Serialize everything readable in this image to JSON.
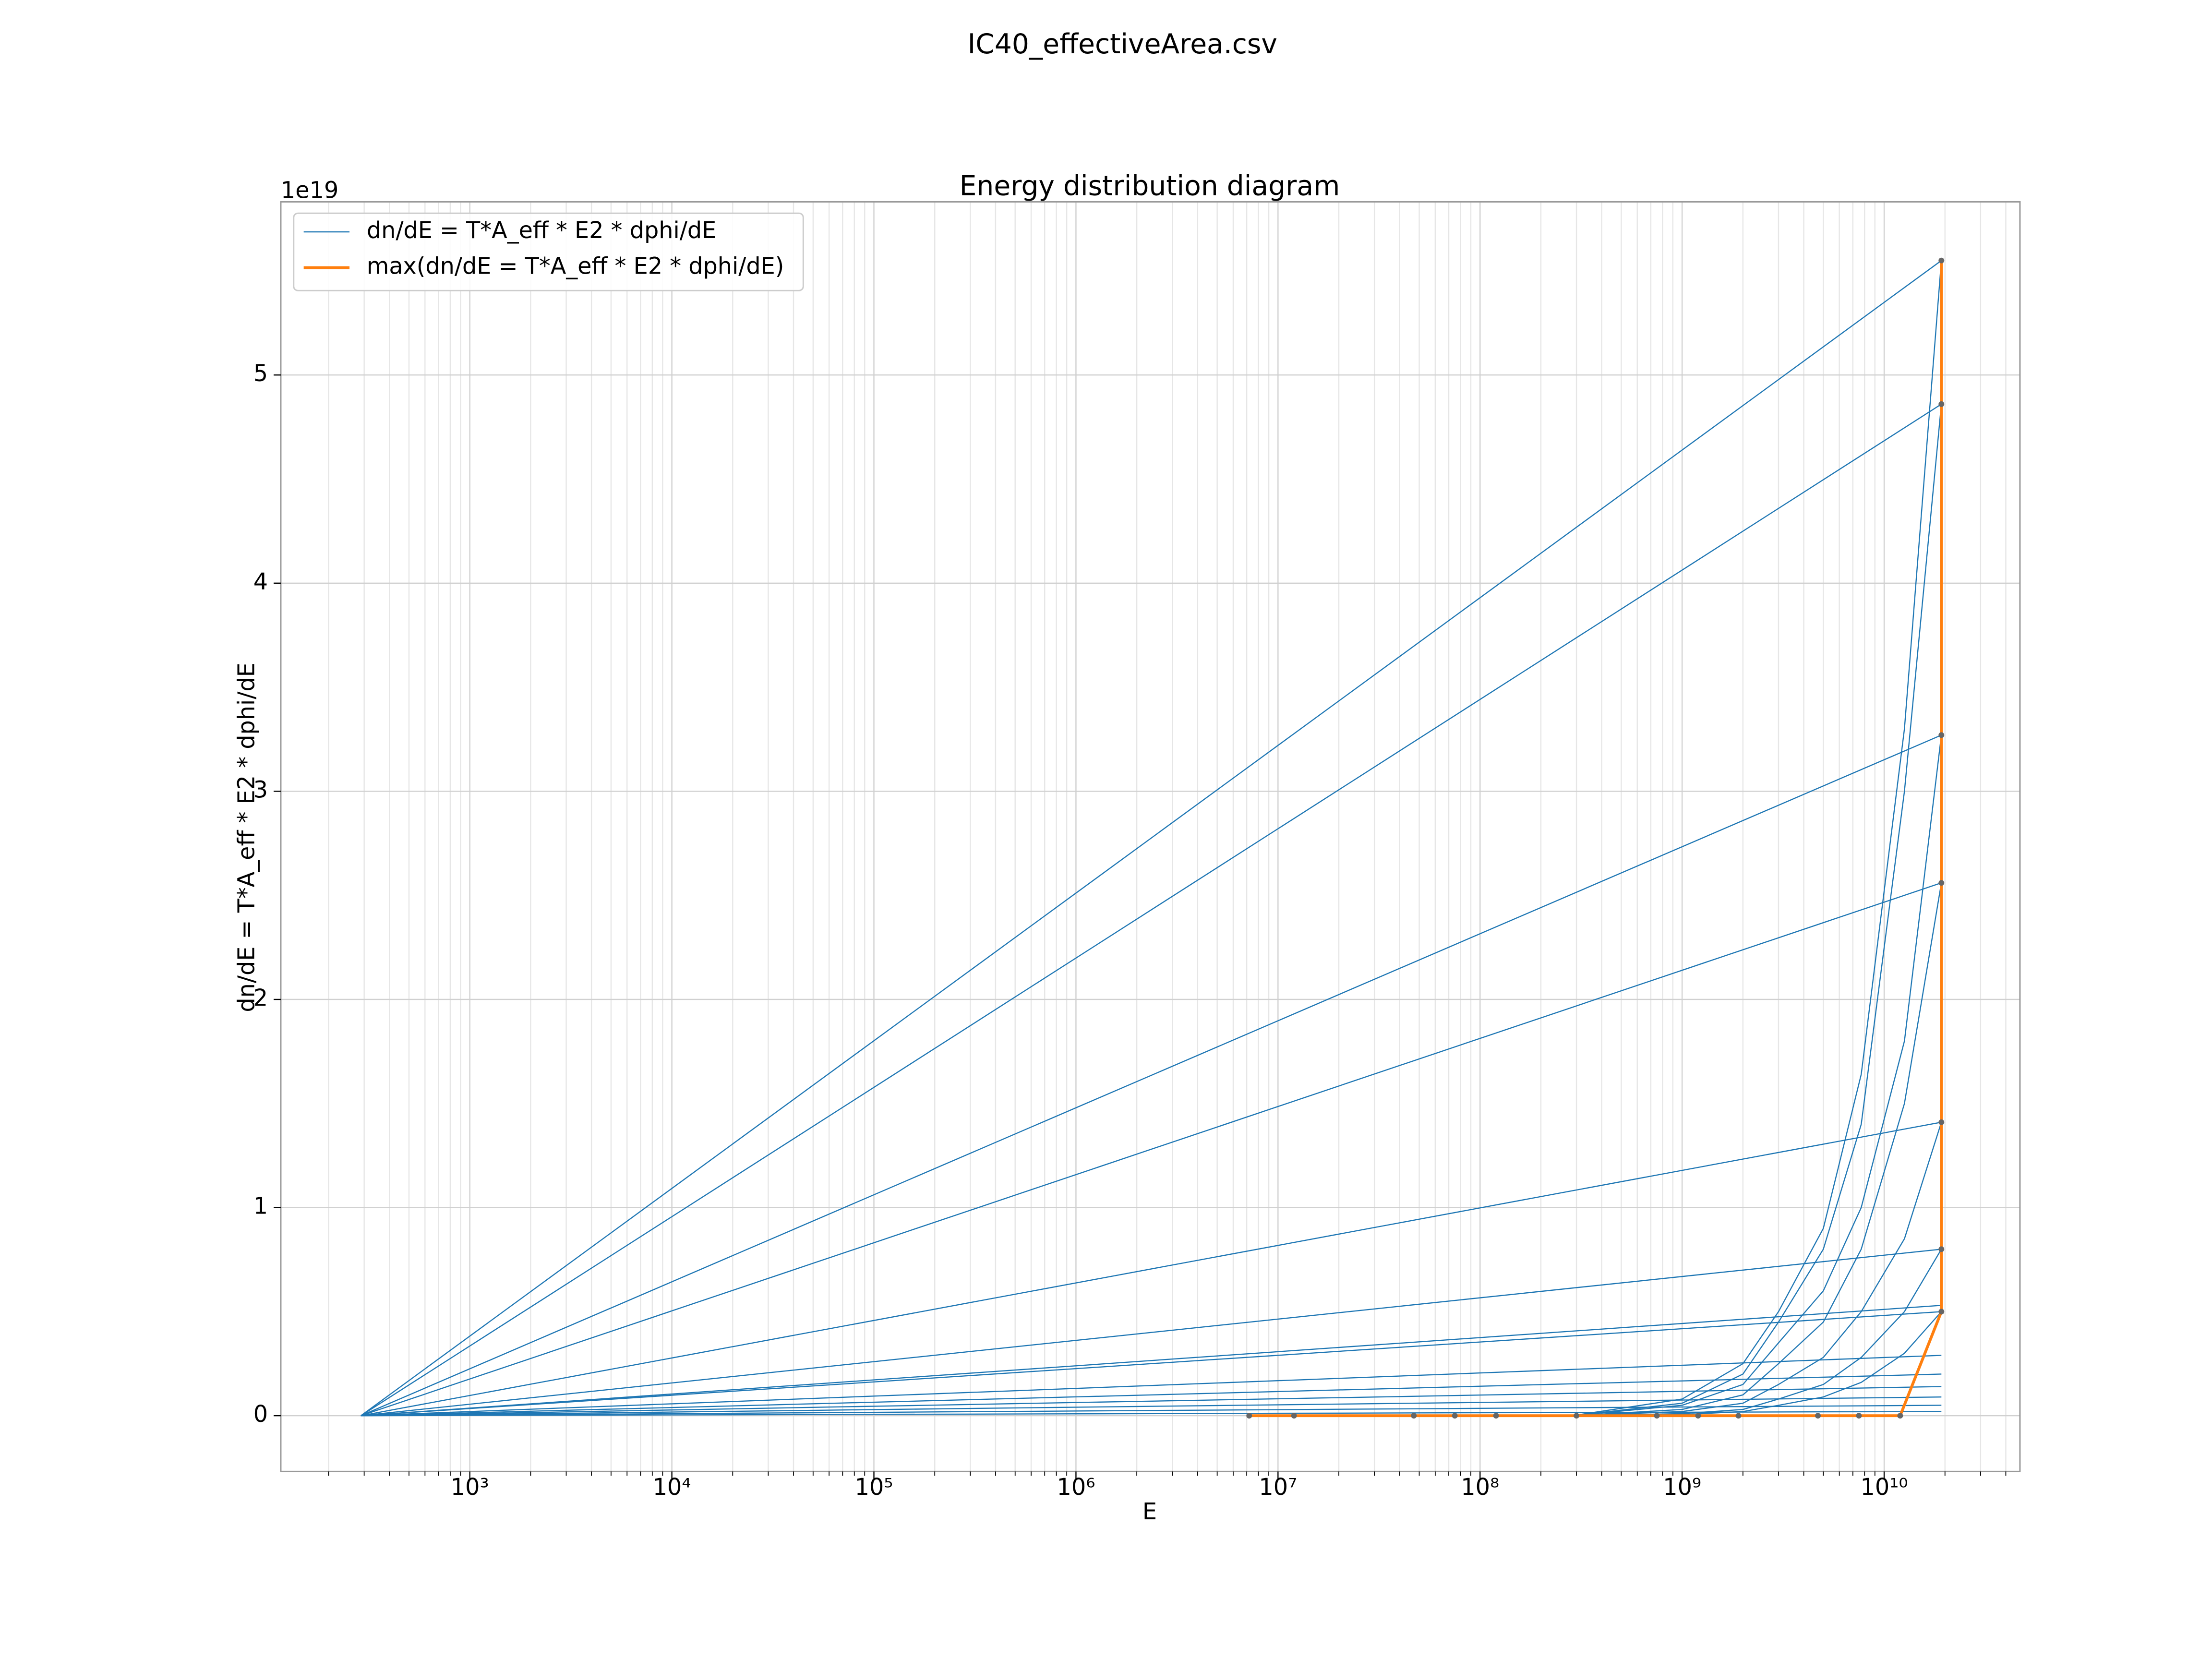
{
  "chart_data": {
    "type": "line",
    "suptitle": "IC40_effectiveArea.csv",
    "title": "Energy distribution diagram",
    "xlabel": "E",
    "ylabel": "dn/dE = T*A_eff * E2 * dphi/dE",
    "y_offset_label": "1e19",
    "xscale": "log",
    "xlim": [
      116,
      47000000000.0
    ],
    "xticks": [
      {
        "value": 1000.0,
        "label": "10³"
      },
      {
        "value": 10000.0,
        "label": "10⁴"
      },
      {
        "value": 100000.0,
        "label": "10⁵"
      },
      {
        "value": 1000000.0,
        "label": "10⁶"
      },
      {
        "value": 10000000.0,
        "label": "10⁷"
      },
      {
        "value": 100000000.0,
        "label": "10⁸"
      },
      {
        "value": 1000000000.0,
        "label": "10⁹"
      },
      {
        "value": 10000000000.0,
        "label": "10¹⁰"
      }
    ],
    "xminorticks": [
      200.0,
      300.0,
      400.0,
      500.0,
      600.0,
      700.0,
      800.0,
      900.0,
      2000.0,
      3000.0,
      4000.0,
      5000.0,
      6000.0,
      7000.0,
      8000.0,
      9000.0,
      20000.0,
      30000.0,
      40000.0,
      50000.0,
      60000.0,
      70000.0,
      80000.0,
      90000.0,
      200000.0,
      300000.0,
      400000.0,
      500000.0,
      600000.0,
      700000.0,
      800000.0,
      900000.0,
      2000000.0,
      3000000.0,
      4000000.0,
      5000000.0,
      6000000.0,
      7000000.0,
      8000000.0,
      9000000.0,
      20000000.0,
      30000000.0,
      40000000.0,
      50000000.0,
      60000000.0,
      70000000.0,
      80000000.0,
      90000000.0,
      200000000.0,
      300000000.0,
      400000000.0,
      500000000.0,
      600000000.0,
      700000000.0,
      800000000.0,
      900000000.0,
      2000000000.0,
      3000000000.0,
      4000000000.0,
      5000000000.0,
      6000000000.0,
      7000000000.0,
      8000000000.0,
      9000000000.0,
      20000000000.0,
      30000000000.0,
      40000000000.0
    ],
    "ylim": [
      -0.268,
      5.832
    ],
    "yticks": [
      0,
      1,
      2,
      3,
      4,
      5
    ],
    "grid": true,
    "legend": "upper left",
    "series": [
      {
        "name": "dn/dE = T*A_eff * E2 * dphi/dE",
        "color": "#1f77b4",
        "lines": [
          {
            "x": [
              289,
              19200000000.0
            ],
            "values": [
              0,
              5.55
            ]
          },
          {
            "x": [
              289,
              19200000000.0
            ],
            "values": [
              0,
              4.86
            ]
          },
          {
            "x": [
              289,
              19200000000.0
            ],
            "values": [
              0,
              3.27
            ]
          },
          {
            "x": [
              289,
              19200000000.0
            ],
            "values": [
              0,
              2.56
            ]
          },
          {
            "x": [
              289,
              19200000000.0
            ],
            "values": [
              0,
              1.41
            ]
          },
          {
            "x": [
              289,
              19200000000.0
            ],
            "values": [
              0,
              0.8
            ]
          },
          {
            "x": [
              289,
              19200000000.0
            ],
            "values": [
              0,
              0.53
            ]
          },
          {
            "x": [
              289,
              19200000000.0
            ],
            "values": [
              0,
              0.5
            ]
          },
          {
            "x": [
              289,
              19200000000.0
            ],
            "values": [
              0,
              0.29
            ]
          },
          {
            "x": [
              289,
              19200000000.0
            ],
            "values": [
              0,
              0.2
            ]
          },
          {
            "x": [
              289,
              19200000000.0
            ],
            "values": [
              0,
              0.14
            ]
          },
          {
            "x": [
              289,
              19200000000.0
            ],
            "values": [
              0,
              0.09
            ]
          },
          {
            "x": [
              289,
              19200000000.0
            ],
            "values": [
              0,
              0.05
            ]
          },
          {
            "x": [
              289,
              19200000000.0
            ],
            "values": [
              0,
              0.02
            ]
          },
          {
            "x": [
              100000000.0,
              300000000.0,
              1000000000.0,
              2000000000.0,
              3000000000.0,
              5000000000.0,
              7700000000.0,
              12600000000.0,
              19200000000.0
            ],
            "values": [
              0,
              0.003,
              0.08,
              0.25,
              0.5,
              0.9,
              1.64,
              3.3,
              5.55
            ]
          },
          {
            "x": [
              100000000.0,
              300000000.0,
              1000000000.0,
              2000000000.0,
              3000000000.0,
              5000000000.0,
              7700000000.0,
              12600000000.0,
              19200000000.0
            ],
            "values": [
              0,
              0.002,
              0.06,
              0.2,
              0.45,
              0.8,
              1.4,
              3.0,
              4.86
            ]
          },
          {
            "x": [
              100000000.0,
              300000000.0,
              1000000000.0,
              2000000000.0,
              3000000000.0,
              5000000000.0,
              7700000000.0,
              12600000000.0,
              19200000000.0
            ],
            "values": [
              0,
              0.002,
              0.05,
              0.15,
              0.35,
              0.6,
              1.0,
              1.8,
              3.27
            ]
          },
          {
            "x": [
              100000000.0,
              300000000.0,
              1000000000.0,
              2000000000.0,
              3000000000.0,
              5000000000.0,
              7700000000.0,
              12600000000.0,
              19200000000.0
            ],
            "values": [
              0,
              0.001,
              0.03,
              0.1,
              0.25,
              0.45,
              0.8,
              1.5,
              2.56
            ]
          },
          {
            "x": [
              100000000.0,
              300000000.0,
              1000000000.0,
              2000000000.0,
              3000000000.0,
              5000000000.0,
              7700000000.0,
              12600000000.0,
              19200000000.0
            ],
            "values": [
              0,
              0.001,
              0.02,
              0.06,
              0.15,
              0.28,
              0.5,
              0.85,
              1.41
            ]
          },
          {
            "x": [
              100000000.0,
              300000000.0,
              1000000000.0,
              2000000000.0,
              3000000000.0,
              5000000000.0,
              7700000000.0,
              12600000000.0,
              19200000000.0
            ],
            "values": [
              0,
              0,
              0.01,
              0.03,
              0.08,
              0.15,
              0.28,
              0.5,
              0.8
            ]
          },
          {
            "x": [
              100000000.0,
              300000000.0,
              1000000000.0,
              2000000000.0,
              3000000000.0,
              5000000000.0,
              7700000000.0,
              12600000000.0,
              19200000000.0
            ],
            "values": [
              0,
              0,
              0.005,
              0.02,
              0.05,
              0.09,
              0.16,
              0.3,
              0.5
            ]
          }
        ]
      },
      {
        "name": "max(dn/dE = T*A_eff * E2 * dphi/dE)",
        "color": "#ff7f0e",
        "marker_color": "#666666",
        "x": [
          7200000.0,
          12000000.0,
          47000000.0,
          75000000.0,
          120000000.0,
          300000000.0,
          750000000.0,
          1200000000.0,
          1900000000.0,
          4700000000.0,
          7500000000.0,
          12000000000.0,
          19200000000.0,
          19200000000.0,
          19200000000.0,
          19200000000.0,
          19200000000.0,
          19200000000.0,
          19200000000.0
        ],
        "values": [
          0,
          0,
          0,
          0,
          0,
          0,
          0,
          0,
          0,
          0,
          0,
          0,
          0.5,
          0.8,
          1.41,
          2.56,
          3.27,
          4.86,
          5.55
        ]
      }
    ]
  }
}
